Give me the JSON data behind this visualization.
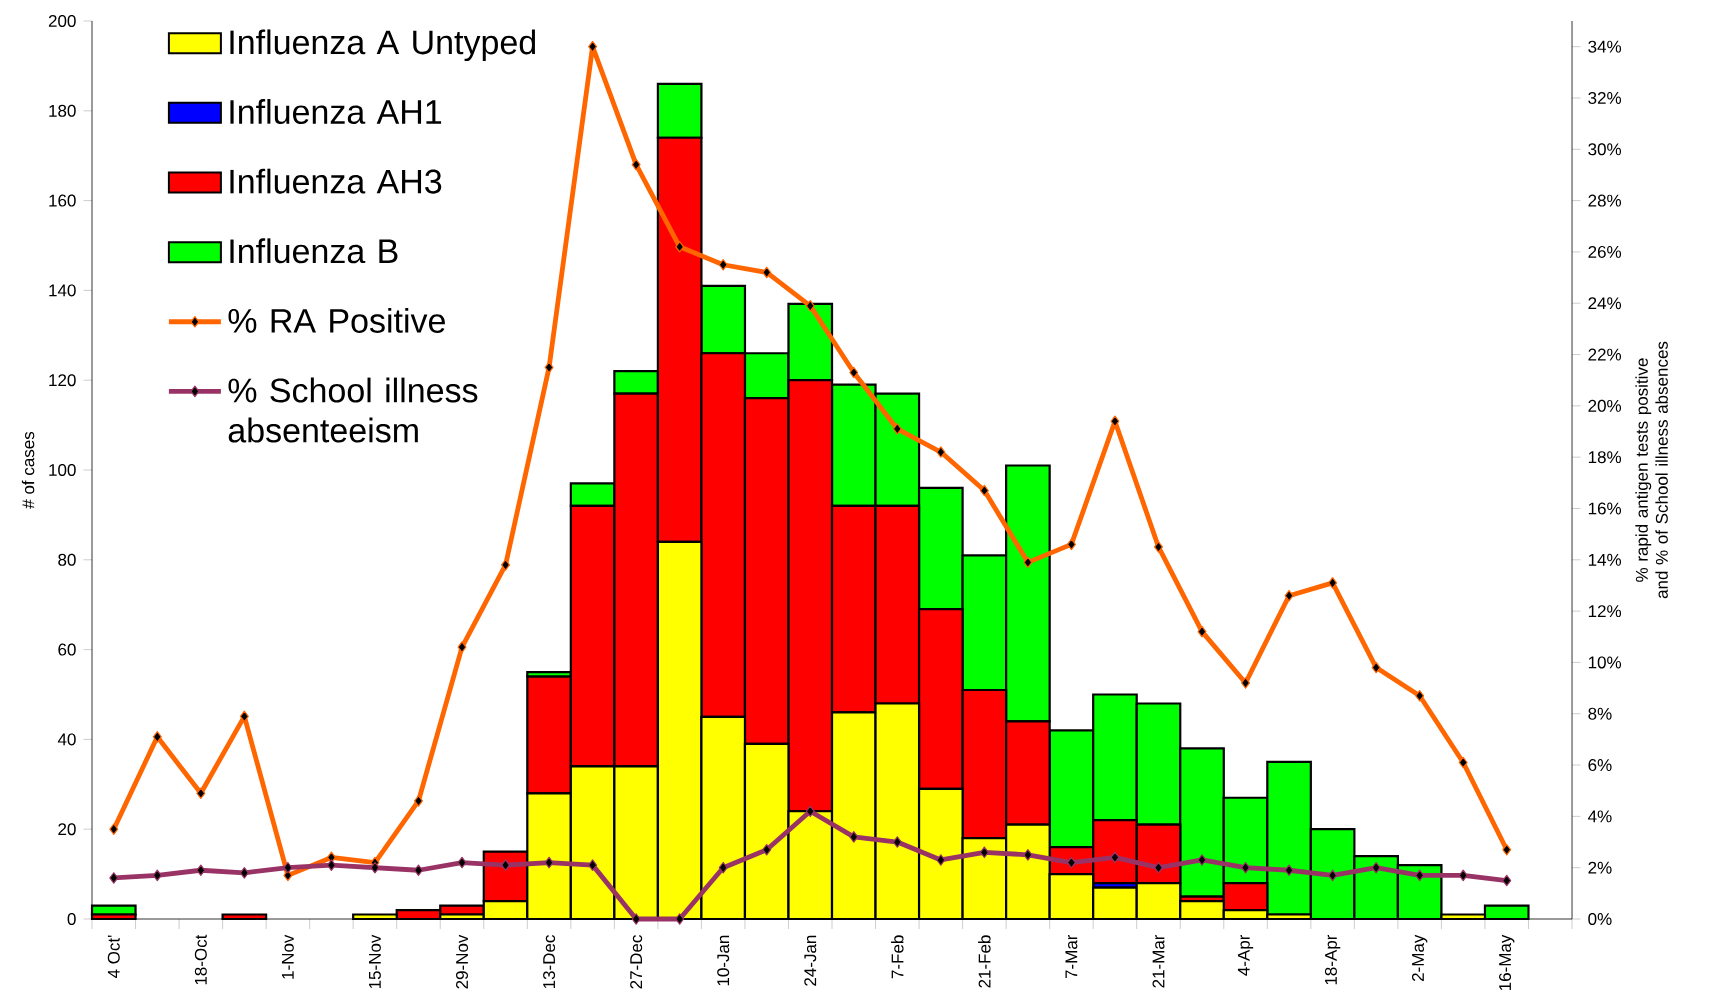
{
  "chart_data": {
    "type": "bar",
    "stacked": true,
    "ylabel": "# of cases",
    "y2label": "% rapid antigen tests positive and % of School illness absences",
    "categories": [
      "4 Oct'",
      null,
      "18-Oct",
      null,
      "1-Nov",
      null,
      "15-Nov",
      null,
      "29-Nov",
      null,
      "13-Dec",
      null,
      "27-Dec",
      null,
      "10-Jan",
      null,
      "24-Jan",
      null,
      "7-Feb",
      null,
      "21-Feb",
      null,
      "7-Mar",
      null,
      "21-Mar",
      null,
      "4-Apr",
      null,
      "18-Apr",
      null,
      "2-May",
      null,
      "16-May"
    ],
    "ylim": [
      0,
      200
    ],
    "yticks": [
      0,
      20,
      40,
      60,
      80,
      100,
      120,
      140,
      160,
      180,
      200
    ],
    "y2lim": [
      0,
      35
    ],
    "y2ticks": [
      {
        "value": 0,
        "label": "0%"
      },
      {
        "value": 2,
        "label": "2%"
      },
      {
        "value": 4,
        "label": "4%"
      },
      {
        "value": 6,
        "label": "6%"
      },
      {
        "value": 8,
        "label": "8%"
      },
      {
        "value": 10,
        "label": "10%"
      },
      {
        "value": 12,
        "label": "12%"
      },
      {
        "value": 14,
        "label": "14%"
      },
      {
        "value": 16,
        "label": "16%"
      },
      {
        "value": 18,
        "label": "18%"
      },
      {
        "value": 20,
        "label": "20%"
      },
      {
        "value": 22,
        "label": "22%"
      },
      {
        "value": 24,
        "label": "24%"
      },
      {
        "value": 26,
        "label": "26%"
      },
      {
        "value": 28,
        "label": "28%"
      },
      {
        "value": 30,
        "label": "30%"
      },
      {
        "value": 32,
        "label": "32%"
      },
      {
        "value": 34,
        "label": "34%"
      }
    ],
    "legend": "top left",
    "marker": "diamond",
    "line_style": "solid",
    "series": [
      {
        "name": "Influenza A Untyped",
        "color": "#ffff00",
        "values": [
          0,
          0,
          0,
          0,
          0,
          0,
          1,
          0,
          1,
          4,
          28,
          34,
          34,
          84,
          45,
          39,
          24,
          46,
          48,
          29,
          18,
          21,
          10,
          7,
          8,
          4,
          2,
          1,
          0,
          0,
          0,
          1,
          0
        ]
      },
      {
        "name": "Influenza AH1",
        "color": "#0000ff",
        "values": [
          0,
          0,
          0,
          0,
          0,
          0,
          0,
          0,
          0,
          0,
          0,
          0,
          0,
          0,
          0,
          0,
          0,
          0,
          0,
          0,
          0,
          0,
          0,
          1,
          0,
          0,
          0,
          0,
          0,
          0,
          0,
          0,
          0
        ]
      },
      {
        "name": "Influenza AH3",
        "color": "#ff0000",
        "values": [
          1,
          0,
          0,
          1,
          0,
          0,
          0,
          2,
          2,
          11,
          26,
          58,
          83,
          90,
          81,
          77,
          96,
          46,
          44,
          40,
          33,
          23,
          6,
          14,
          13,
          1,
          6,
          0,
          0,
          0,
          0,
          0,
          0
        ]
      },
      {
        "name": "Influenza B",
        "color": "#00ff00",
        "values": [
          2,
          0,
          0,
          0,
          0,
          0,
          0,
          0,
          0,
          0,
          1,
          5,
          5,
          12,
          15,
          10,
          17,
          27,
          25,
          27,
          30,
          57,
          26,
          28,
          27,
          33,
          19,
          34,
          20,
          14,
          12,
          0,
          3
        ]
      },
      {
        "name": "% RA Positive",
        "type": "line",
        "axis": "y2",
        "color": "#ff6600",
        "values": [
          3.5,
          7.1,
          4.9,
          7.9,
          1.7,
          2.4,
          2.2,
          4.6,
          10.6,
          13.8,
          21.5,
          34.0,
          29.4,
          26.2,
          25.5,
          25.2,
          23.9,
          21.3,
          19.1,
          18.2,
          16.7,
          13.9,
          14.6,
          19.4,
          14.5,
          11.2,
          9.2,
          12.6,
          13.1,
          9.8,
          8.7,
          6.1,
          2.7
        ]
      },
      {
        "name": "% School illness absenteeism",
        "type": "line",
        "axis": "y2",
        "color": "#993366",
        "values": [
          1.6,
          1.7,
          1.9,
          1.8,
          2.0,
          2.1,
          2.0,
          1.9,
          2.2,
          2.1,
          2.2,
          2.1,
          0,
          0,
          2.0,
          2.7,
          4.2,
          3.2,
          3.0,
          2.3,
          2.6,
          2.5,
          2.2,
          2.4,
          2.0,
          2.3,
          2.0,
          1.9,
          1.7,
          2.0,
          1.7,
          1.7,
          1.5
        ]
      }
    ]
  }
}
